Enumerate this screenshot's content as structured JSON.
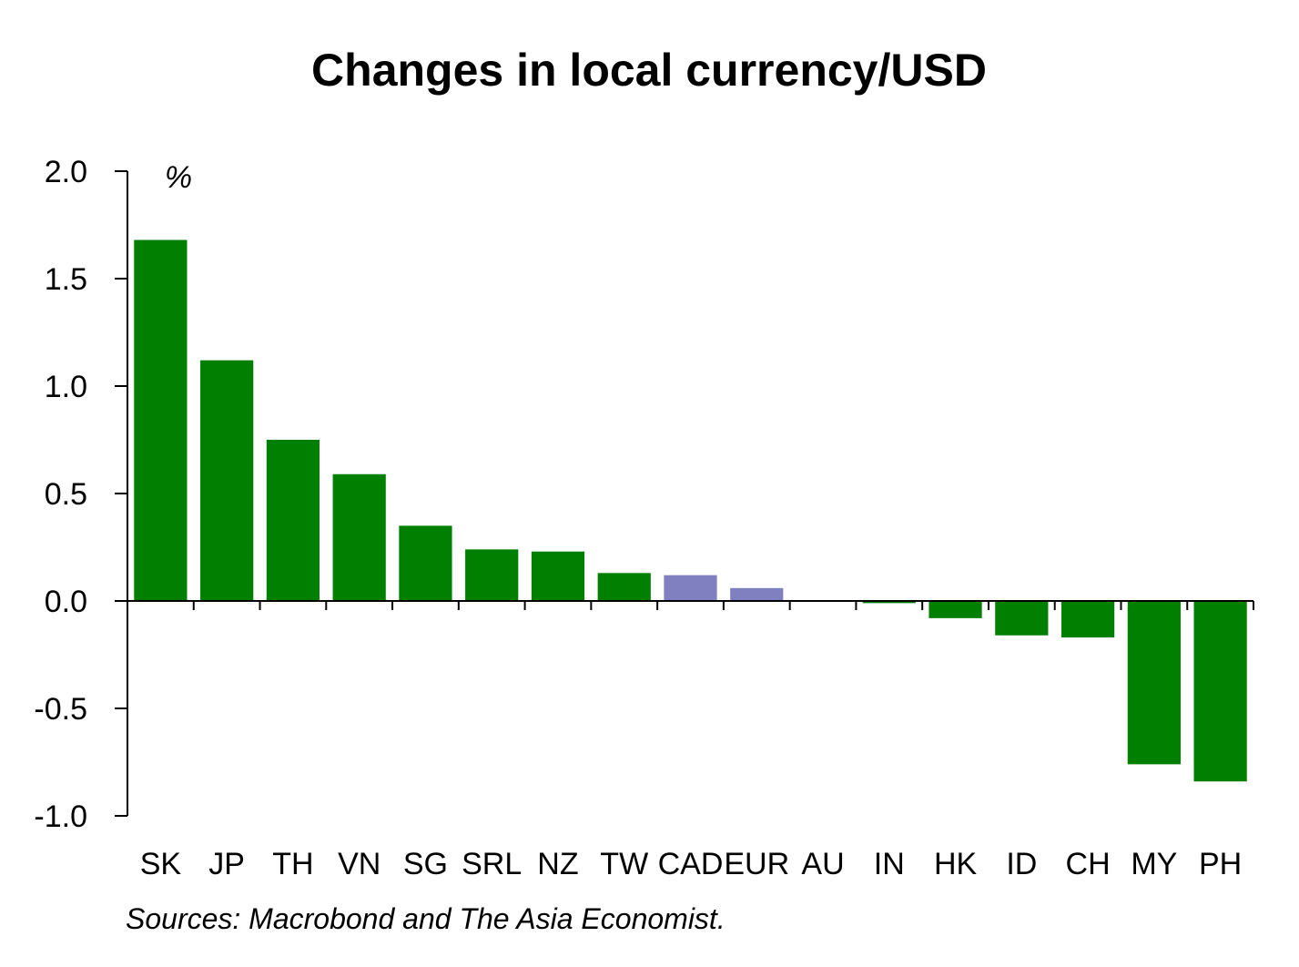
{
  "chart_data": {
    "type": "bar",
    "title": "Changes in local currency/USD",
    "unit_label": "%",
    "source": "Sources: Macrobond and The Asia Economist.",
    "xlabel": "",
    "ylabel": "",
    "ylim": [
      -1.0,
      2.0
    ],
    "yticks": [
      "2.0",
      "1.5",
      "1.0",
      "0.5",
      "0.0",
      "-0.5",
      "-1.0"
    ],
    "grid": false,
    "legend": "none",
    "categories": [
      "SK",
      "JP",
      "TH",
      "VN",
      "SG",
      "SRL",
      "NZ",
      "TW",
      "CAD",
      "EUR",
      "AU",
      "IN",
      "HK",
      "ID",
      "CH",
      "MY",
      "PH"
    ],
    "values": [
      1.68,
      1.12,
      0.75,
      0.59,
      0.35,
      0.24,
      0.23,
      0.13,
      0.12,
      0.06,
      0.0,
      -0.01,
      -0.08,
      -0.16,
      -0.17,
      -0.76,
      -0.84
    ],
    "bar_colors": [
      "#007F00",
      "#007F00",
      "#007F00",
      "#007F00",
      "#007F00",
      "#007F00",
      "#007F00",
      "#007F00",
      "#8080C0",
      "#8080C0",
      "#007F00",
      "#007F00",
      "#007F00",
      "#007F00",
      "#007F00",
      "#007F00",
      "#007F00"
    ]
  }
}
